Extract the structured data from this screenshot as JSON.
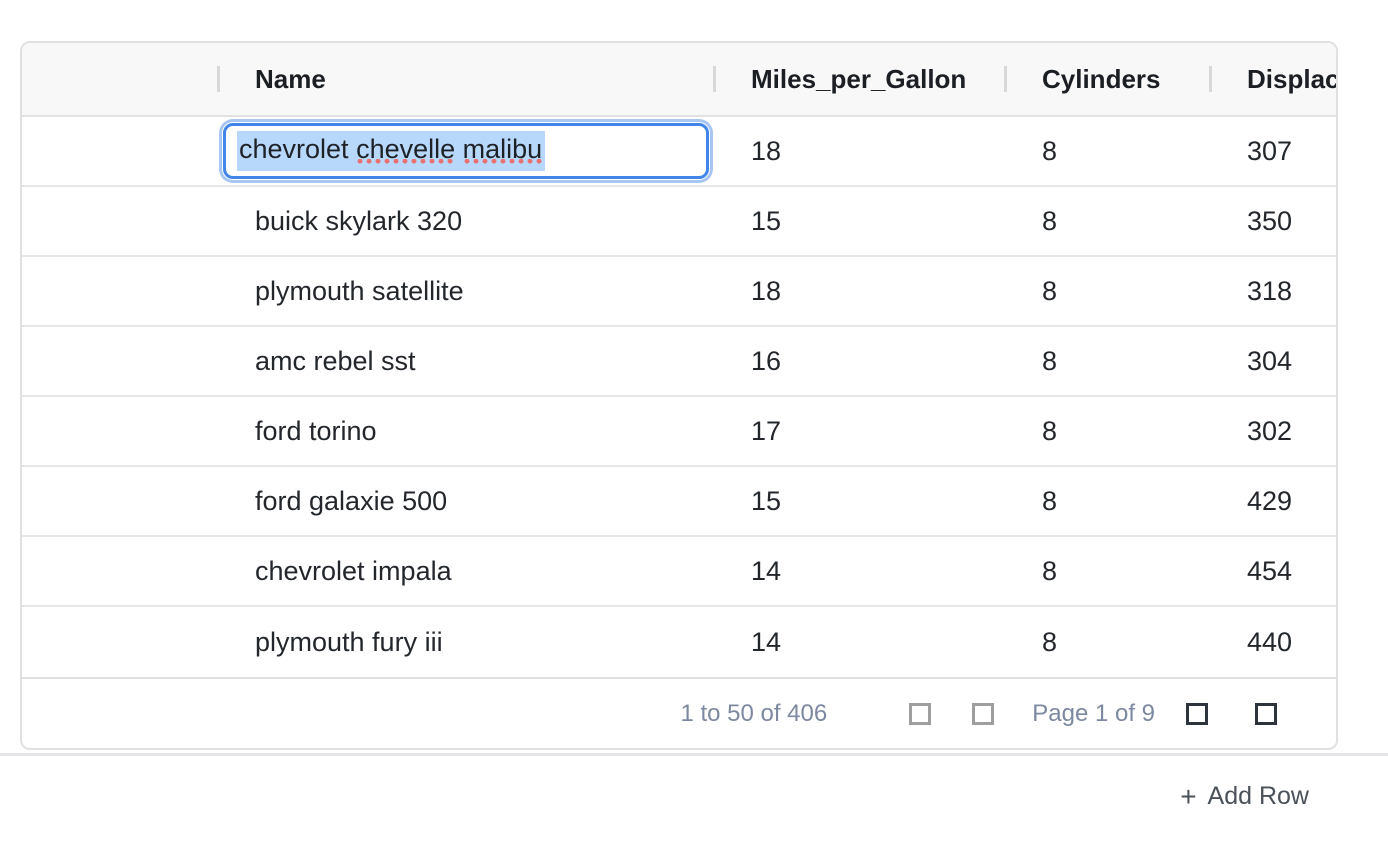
{
  "grid": {
    "columns": [
      {
        "label": "Name"
      },
      {
        "label": "Miles_per_Gallon"
      },
      {
        "label": "Cylinders"
      },
      {
        "label": "Displacement"
      }
    ],
    "rows": [
      {
        "name": "chevrolet chevelle malibu",
        "mpg": "18",
        "cylinders": "8",
        "displacement": "307"
      },
      {
        "name": "buick skylark 320",
        "mpg": "15",
        "cylinders": "8",
        "displacement": "350"
      },
      {
        "name": "plymouth satellite",
        "mpg": "18",
        "cylinders": "8",
        "displacement": "318"
      },
      {
        "name": "amc rebel sst",
        "mpg": "16",
        "cylinders": "8",
        "displacement": "304"
      },
      {
        "name": "ford torino",
        "mpg": "17",
        "cylinders": "8",
        "displacement": "302"
      },
      {
        "name": "ford galaxie 500",
        "mpg": "15",
        "cylinders": "8",
        "displacement": "429"
      },
      {
        "name": "chevrolet impala",
        "mpg": "14",
        "cylinders": "8",
        "displacement": "454"
      },
      {
        "name": "plymouth fury iii",
        "mpg": "14",
        "cylinders": "8",
        "displacement": "440"
      }
    ]
  },
  "editor": {
    "value": "chevrolet chevelle malibu",
    "text_selected": true,
    "segments": [
      {
        "text": "chevrolet ",
        "misspelled": false
      },
      {
        "text": "chevelle",
        "misspelled": true
      },
      {
        "text": " ",
        "misspelled": false
      },
      {
        "text": "malibu",
        "misspelled": true
      }
    ]
  },
  "pagination": {
    "summary": "1 to 50 of 406",
    "page_status": "Page 1 of 9",
    "buttons": {
      "first_page": {
        "enabled": false
      },
      "previous_page": {
        "enabled": false
      },
      "next_page": {
        "enabled": true
      },
      "last_page": {
        "enabled": true
      }
    }
  },
  "add_row": {
    "icon": "+",
    "label": "Add Row"
  },
  "colors": {
    "focus_ring_blue": "#4285e8",
    "selection_blue": "#b7d7fb",
    "spellcheck_red": "#e9716f",
    "pagination_text": "#7d89a0",
    "header_bg": "#f8f8f8",
    "row_border": "#e7e7e7"
  }
}
